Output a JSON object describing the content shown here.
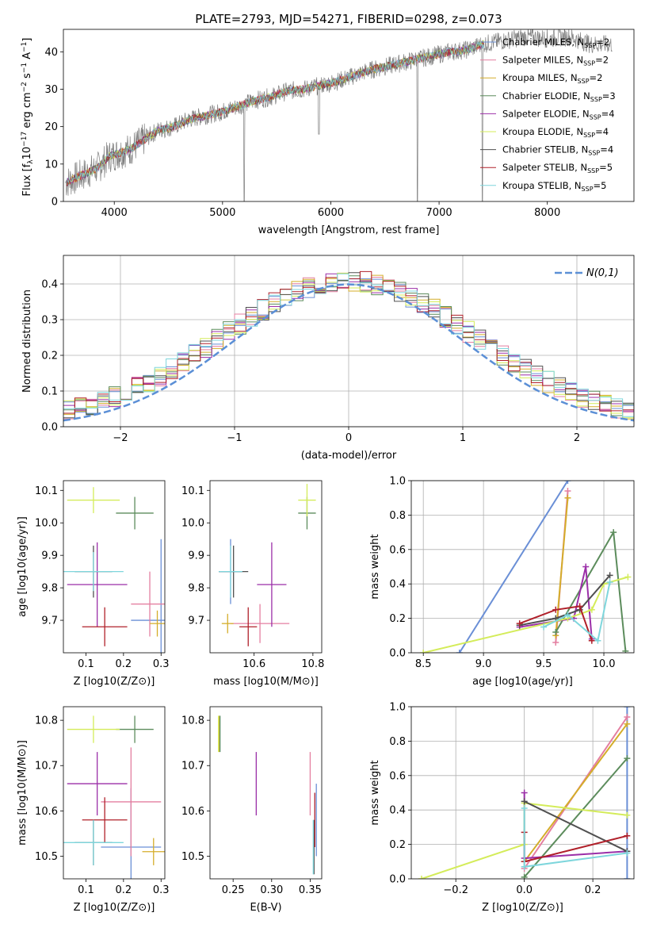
{
  "figure": {
    "title": "PLATE=2793, MJD=54271, FIBERID=0298, z=0.073",
    "legend_models": [
      {
        "name": "Chabrier MILES",
        "n": "2",
        "color": "#6a8fd6"
      },
      {
        "name": "Salpeter MILES",
        "n": "2",
        "color": "#e47fa0"
      },
      {
        "name": "Kroupa MILES",
        "n": "2",
        "color": "#d4ad2a"
      },
      {
        "name": "Chabrier ELODIE",
        "n": "3",
        "color": "#5c8c5c"
      },
      {
        "name": "Salpeter ELODIE",
        "n": "4",
        "color": "#9b2fa8"
      },
      {
        "name": "Kroupa ELODIE",
        "n": "4",
        "color": "#d4ec5a"
      },
      {
        "name": "Chabrier STELIB",
        "n": "4",
        "color": "#505050"
      },
      {
        "name": "Salpeter STELIB",
        "n": "5",
        "color": "#b0202a"
      },
      {
        "name": "Kroupa STELIB",
        "n": "5",
        "color": "#7ed6dc"
      }
    ],
    "legend_prefix_n": "N",
    "legend_sub": "SSP"
  },
  "chart_data": [
    {
      "id": "spectrum",
      "type": "line",
      "xlabel": "wavelength [Angstrom, rest frame]",
      "ylabel": "Flux [f_λ 10^-17 erg cm^-2 s^-1 A^-1]",
      "xlim": [
        3530,
        8800
      ],
      "ylim": [
        0,
        46
      ],
      "xticks": [
        4000,
        5000,
        6000,
        7000,
        8000
      ],
      "yticks": [
        0,
        10,
        20,
        30,
        40
      ],
      "grid": false,
      "legend_position": "top-right",
      "data_color": "#808080",
      "data_sketch": [
        [
          3550,
          5
        ],
        [
          3700,
          7
        ],
        [
          3850,
          9
        ],
        [
          3950,
          12
        ],
        [
          4050,
          13
        ],
        [
          4150,
          14
        ],
        [
          4250,
          16
        ],
        [
          4400,
          19
        ],
        [
          4550,
          20
        ],
        [
          4700,
          22
        ],
        [
          4850,
          23
        ],
        [
          5000,
          24
        ],
        [
          5150,
          25.5
        ],
        [
          5300,
          27
        ],
        [
          5450,
          28
        ],
        [
          5600,
          29.5
        ],
        [
          5750,
          30
        ],
        [
          5900,
          31
        ],
        [
          6050,
          32
        ],
        [
          6200,
          33.5
        ],
        [
          6350,
          35
        ],
        [
          6500,
          36
        ],
        [
          6650,
          37
        ],
        [
          6800,
          38
        ],
        [
          6950,
          39
        ],
        [
          7100,
          40
        ],
        [
          7250,
          40.5
        ],
        [
          7400,
          42
        ],
        [
          7600,
          43
        ],
        [
          7800,
          44
        ],
        [
          8000,
          43.5
        ],
        [
          8200,
          44
        ],
        [
          8400,
          42
        ],
        [
          8600,
          42
        ]
      ],
      "features": [
        [
          5200,
          0
        ],
        [
          5890,
          18
        ],
        [
          6800,
          0
        ],
        [
          7400,
          0
        ]
      ]
    },
    {
      "id": "residuals",
      "type": "histogram",
      "xlabel": "(data-model)/error",
      "ylabel": "Normed distribution",
      "xlim": [
        -2.5,
        2.5
      ],
      "ylim": [
        0,
        0.48
      ],
      "xticks": [
        -2,
        -1,
        0,
        1,
        2
      ],
      "yticks": [
        0.0,
        0.1,
        0.2,
        0.3,
        0.4
      ],
      "grid": true,
      "legend_position": "top-right",
      "legend_label": "N(0,1)",
      "bin_width": 0.1,
      "gaussian": {
        "mu": 0,
        "sigma": 1
      }
    },
    {
      "id": "age_vs_Z",
      "type": "errorbar",
      "xlabel": "Z [log10(Z/Z⊙)]",
      "ylabel": "age [log10(age/yr)]",
      "xlim": [
        0.04,
        0.31
      ],
      "ylim": [
        9.6,
        10.13
      ],
      "xticks": [
        0.1,
        0.2,
        0.3
      ],
      "yticks": [
        9.7,
        9.8,
        9.9,
        10.0,
        10.1
      ],
      "grid": false,
      "points": [
        {
          "x": 0.3,
          "y": 9.7,
          "ex": 0.08,
          "ey": 0.25,
          "c": 0
        },
        {
          "x": 0.27,
          "y": 9.75,
          "ex": 0.05,
          "ey": 0.1,
          "c": 1
        },
        {
          "x": 0.29,
          "y": 9.69,
          "ex": 0.02,
          "ey": 0.04,
          "c": 2
        },
        {
          "x": 0.23,
          "y": 10.03,
          "ex": 0.05,
          "ey": 0.05,
          "c": 3
        },
        {
          "x": 0.13,
          "y": 9.81,
          "ex": 0.08,
          "ey": 0.13,
          "c": 4
        },
        {
          "x": 0.12,
          "y": 10.07,
          "ex": 0.07,
          "ey": 0.04,
          "c": 5
        },
        {
          "x": 0.12,
          "y": 9.85,
          "ex": 0.05,
          "ey": 0.08,
          "c": 6
        },
        {
          "x": 0.15,
          "y": 9.68,
          "ex": 0.06,
          "ey": 0.06,
          "c": 7
        },
        {
          "x": 0.12,
          "y": 9.85,
          "ex": 0.08,
          "ey": 0.06,
          "c": 8
        }
      ]
    },
    {
      "id": "age_vs_mass",
      "type": "errorbar",
      "xlabel": "mass [log10(M/M⊙)]",
      "ylabel": "",
      "xlim": [
        10.45,
        10.83
      ],
      "ylim": [
        9.6,
        10.13
      ],
      "xticks": [
        10.6,
        10.8
      ],
      "yticks": [
        9.7,
        9.8,
        9.9,
        10.0,
        10.1
      ],
      "grid": false,
      "points": [
        {
          "x": 10.52,
          "y": 9.85,
          "ex": 0.04,
          "ey": 0.1,
          "c": 0
        },
        {
          "x": 10.62,
          "y": 9.69,
          "ex": 0.1,
          "ey": 0.06,
          "c": 1
        },
        {
          "x": 10.51,
          "y": 9.69,
          "ex": 0.02,
          "ey": 0.03,
          "c": 2
        },
        {
          "x": 10.78,
          "y": 10.03,
          "ex": 0.03,
          "ey": 0.05,
          "c": 3
        },
        {
          "x": 10.66,
          "y": 9.81,
          "ex": 0.05,
          "ey": 0.13,
          "c": 4
        },
        {
          "x": 10.78,
          "y": 10.07,
          "ex": 0.03,
          "ey": 0.05,
          "c": 5
        },
        {
          "x": 10.53,
          "y": 9.85,
          "ex": 0.05,
          "ey": 0.08,
          "c": 6
        },
        {
          "x": 10.58,
          "y": 9.68,
          "ex": 0.03,
          "ey": 0.06,
          "c": 7
        },
        {
          "x": 10.52,
          "y": 9.85,
          "ex": 0.04,
          "ey": 0.08,
          "c": 8
        }
      ]
    },
    {
      "id": "weight_vs_age",
      "type": "line",
      "xlabel": "age [log10(age/yr)]",
      "ylabel": "mass weight",
      "xlim": [
        8.4,
        10.25
      ],
      "ylim": [
        0,
        1
      ],
      "xticks": [
        8.5,
        9.0,
        9.5,
        10.0
      ],
      "yticks": [
        0.0,
        0.2,
        0.4,
        0.6,
        0.8,
        1.0
      ],
      "grid": true,
      "series": [
        {
          "c": 0,
          "points": [
            [
              8.8,
              0
            ],
            [
              9.7,
              1.0
            ]
          ]
        },
        {
          "c": 1,
          "points": [
            [
              9.6,
              0.06
            ],
            [
              9.7,
              0.94
            ]
          ]
        },
        {
          "c": 2,
          "points": [
            [
              9.6,
              0.1
            ],
            [
              9.7,
              0.9
            ]
          ]
        },
        {
          "c": 3,
          "points": [
            [
              9.6,
              0.12
            ],
            [
              10.08,
              0.7
            ],
            [
              10.18,
              0.01
            ]
          ]
        },
        {
          "c": 4,
          "points": [
            [
              9.3,
              0.15
            ],
            [
              9.75,
              0.2
            ],
            [
              9.85,
              0.5
            ],
            [
              9.9,
              0.08
            ]
          ]
        },
        {
          "c": 5,
          "points": [
            [
              8.5,
              0
            ],
            [
              9.7,
              0.2
            ],
            [
              9.9,
              0.25
            ],
            [
              10.0,
              0.4
            ],
            [
              10.2,
              0.44
            ]
          ]
        },
        {
          "c": 6,
          "points": [
            [
              9.3,
              0.16
            ],
            [
              9.6,
              0.2
            ],
            [
              9.8,
              0.25
            ],
            [
              10.05,
              0.45
            ]
          ]
        },
        {
          "c": 7,
          "points": [
            [
              9.3,
              0.17
            ],
            [
              9.6,
              0.25
            ],
            [
              9.8,
              0.27
            ],
            [
              9.9,
              0.07
            ]
          ]
        },
        {
          "c": 8,
          "points": [
            [
              9.5,
              0.15
            ],
            [
              9.7,
              0.22
            ],
            [
              9.95,
              0.07
            ],
            [
              10.05,
              0.41
            ]
          ]
        }
      ]
    },
    {
      "id": "mass_vs_Z",
      "type": "errorbar",
      "xlabel": "Z [log10(Z/Z⊙)]",
      "ylabel": "mass [log10(M/M⊙)]",
      "xlim": [
        0.04,
        0.31
      ],
      "ylim": [
        10.45,
        10.83
      ],
      "xticks": [
        0.1,
        0.2,
        0.3
      ],
      "yticks": [
        10.5,
        10.6,
        10.7,
        10.8
      ],
      "grid": false,
      "points": [
        {
          "x": 0.22,
          "y": 10.52,
          "ex": 0.08,
          "ey": 0.13,
          "c": 0
        },
        {
          "x": 0.22,
          "y": 10.62,
          "ex": 0.08,
          "ey": 0.12,
          "c": 1
        },
        {
          "x": 0.28,
          "y": 10.51,
          "ex": 0.03,
          "ey": 0.03,
          "c": 2
        },
        {
          "x": 0.23,
          "y": 10.78,
          "ex": 0.05,
          "ey": 0.03,
          "c": 3
        },
        {
          "x": 0.13,
          "y": 10.66,
          "ex": 0.08,
          "ey": 0.07,
          "c": 4
        },
        {
          "x": 0.12,
          "y": 10.78,
          "ex": 0.07,
          "ey": 0.03,
          "c": 5
        },
        {
          "x": 0.12,
          "y": 10.53,
          "ex": 0.05,
          "ey": 0.05,
          "c": 6
        },
        {
          "x": 0.15,
          "y": 10.58,
          "ex": 0.06,
          "ey": 0.05,
          "c": 7
        },
        {
          "x": 0.12,
          "y": 10.53,
          "ex": 0.08,
          "ey": 0.05,
          "c": 8
        }
      ]
    },
    {
      "id": "mass_vs_EBV",
      "type": "errorbar",
      "xlabel": "E(B-V)",
      "ylabel": "",
      "xlim": [
        0.22,
        0.365
      ],
      "ylim": [
        10.45,
        10.83
      ],
      "xticks": [
        0.25,
        0.3,
        0.35
      ],
      "yticks": [
        10.5,
        10.6,
        10.7,
        10.8
      ],
      "grid": false,
      "points": [
        {
          "x": 0.358,
          "y": 10.58,
          "ex": 0.0,
          "ey": 0.08,
          "c": 0
        },
        {
          "x": 0.35,
          "y": 10.66,
          "ex": 0.0,
          "ey": 0.07,
          "c": 1
        },
        {
          "x": 0.232,
          "y": 10.77,
          "ex": 0.0,
          "ey": 0.04,
          "c": 2
        },
        {
          "x": 0.233,
          "y": 10.77,
          "ex": 0.0,
          "ey": 0.04,
          "c": 3
        },
        {
          "x": 0.28,
          "y": 10.66,
          "ex": 0.0,
          "ey": 0.07,
          "c": 4
        },
        {
          "x": 0.231,
          "y": 10.77,
          "ex": 0.0,
          "ey": 0.04,
          "c": 5
        },
        {
          "x": 0.355,
          "y": 10.52,
          "ex": 0.0,
          "ey": 0.06,
          "c": 6
        },
        {
          "x": 0.356,
          "y": 10.58,
          "ex": 0.0,
          "ey": 0.06,
          "c": 7
        },
        {
          "x": 0.354,
          "y": 10.52,
          "ex": 0.0,
          "ey": 0.06,
          "c": 8
        }
      ]
    },
    {
      "id": "weight_vs_Z",
      "type": "line",
      "xlabel": "Z [log10(Z/Z⊙)]",
      "ylabel": "mass weight",
      "xlim": [
        -0.33,
        0.32
      ],
      "ylim": [
        0,
        1
      ],
      "xticks": [
        -0.2,
        0.0,
        0.2
      ],
      "yticks": [
        0.0,
        0.2,
        0.4,
        0.6,
        0.8,
        1.0
      ],
      "grid": true,
      "series": [
        {
          "c": 0,
          "points": [
            [
              0.3,
              0
            ],
            [
              0.3,
              1.0
            ]
          ]
        },
        {
          "c": 1,
          "points": [
            [
              0,
              0.06
            ],
            [
              0.3,
              0.94
            ]
          ]
        },
        {
          "c": 2,
          "points": [
            [
              0,
              0.1
            ],
            [
              0.3,
              0.9
            ]
          ]
        },
        {
          "c": 3,
          "points": [
            [
              0,
              0.01
            ],
            [
              0.3,
              0.7
            ]
          ]
        },
        {
          "c": 4,
          "points": [
            [
              0,
              0.5
            ],
            [
              0,
              0.12
            ],
            [
              0.3,
              0.16
            ]
          ]
        },
        {
          "c": 5,
          "points": [
            [
              -0.3,
              0
            ],
            [
              0,
              0.2
            ],
            [
              0,
              0.44
            ],
            [
              0.3,
              0.37
            ]
          ]
        },
        {
          "c": 6,
          "points": [
            [
              0,
              0.45
            ],
            [
              0.3,
              0.16
            ]
          ]
        },
        {
          "c": 7,
          "points": [
            [
              0,
              0.27
            ],
            [
              0,
              0.1
            ],
            [
              0.3,
              0.25
            ]
          ]
        },
        {
          "c": 8,
          "points": [
            [
              0,
              0.41
            ],
            [
              0,
              0.07
            ],
            [
              0.3,
              0.15
            ]
          ]
        }
      ]
    }
  ]
}
